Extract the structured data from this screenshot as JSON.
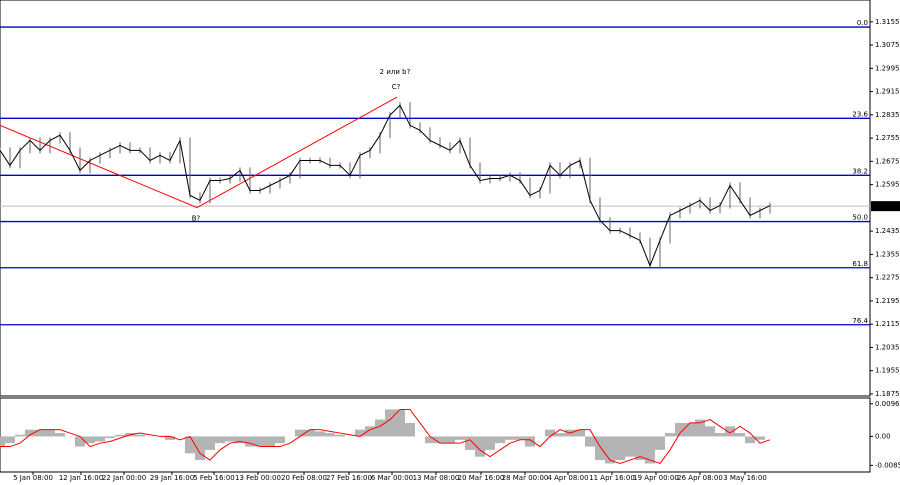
{
  "chart_data": [
    {
      "type": "line",
      "color": "#000000",
      "ylim": [
        1.1868,
        1.323
      ],
      "xlim": [
        0,
        87
      ],
      "yticks": [
        1.3155,
        1.3075,
        1.2995,
        1.2915,
        1.2835,
        1.2755,
        1.2675,
        1.2595,
        1.2435,
        1.2355,
        1.2275,
        1.2195,
        1.2115,
        1.2035,
        1.1955,
        1.1875
      ],
      "current_price": 1.2521,
      "values": [
        1.2713,
        1.2661,
        1.2713,
        1.2747,
        1.2713,
        1.2747,
        1.2765,
        1.2713,
        1.2644,
        1.2678,
        1.2696,
        1.2713,
        1.273,
        1.2713,
        1.2713,
        1.2678,
        1.2696,
        1.2678,
        1.2747,
        1.2558,
        1.2541,
        1.2609,
        1.2609,
        1.2616,
        1.2644,
        1.2575,
        1.2575,
        1.2592,
        1.2609,
        1.2627,
        1.2678,
        1.2678,
        1.2678,
        1.2661,
        1.2661,
        1.2627,
        1.2696,
        1.2713,
        1.2765,
        1.2834,
        1.2868,
        1.2799,
        1.2782,
        1.2747,
        1.273,
        1.2713,
        1.2747,
        1.2661,
        1.2609,
        1.2616,
        1.2616,
        1.2627,
        1.2609,
        1.2558,
        1.2575,
        1.2661,
        1.2627,
        1.2661,
        1.2678,
        1.2541,
        1.2472,
        1.2437,
        1.2437,
        1.242,
        1.2403,
        1.2316,
        1.2403,
        1.2489,
        1.2506,
        1.2523,
        1.2541,
        1.2506,
        1.2523,
        1.2592,
        1.2541,
        1.2489,
        1.2506,
        1.2523
      ],
      "fib_color": "#0000cc",
      "fib_levels": [
        {
          "label": "0.0",
          "value": 1.3137
        },
        {
          "label": "23.6",
          "value": 1.2823
        },
        {
          "label": "38.2",
          "value": 1.2627
        },
        {
          "label": "50.0",
          "value": 1.2468
        },
        {
          "label": "61.8",
          "value": 1.2309
        },
        {
          "label": "76.4",
          "value": 1.2113
        }
      ],
      "wave_line": {
        "color": "#ff0000",
        "x": [
          0,
          19.7,
          39.7
        ],
        "values": [
          1.2799,
          1.2516,
          1.2896
        ]
      },
      "annotations": [
        {
          "text": "B?",
          "color": "#ff0000",
          "x": 19.6,
          "y": 1.2478
        },
        {
          "text": "C?",
          "color": "#ff0000",
          "x": 39.6,
          "y": 1.293
        },
        {
          "text": "2 или b?",
          "color": "#0000cc",
          "x": 39.5,
          "y": 1.2982
        }
      ]
    },
    {
      "type": "bar",
      "color": "#b4b4b4",
      "signal_color": "#ff0000",
      "ylim": [
        -0.01054,
        0.01139
      ],
      "xlim": [
        0,
        87
      ],
      "yticks": [
        0.00968,
        {
          "value": 0,
          "label": "0.00"
        },
        -0.00857
      ],
      "xticks": [
        {
          "value": 3.3,
          "label": "5 Jan 08:00"
        },
        {
          "value": 8.1,
          "label": "12 Jan 16:00"
        },
        {
          "value": 12.4,
          "label": "22 Jan 00:00"
        },
        {
          "value": 17.2,
          "label": "29 Jan 16:00"
        },
        {
          "value": 21.4,
          "label": "5 Feb 16:00"
        },
        {
          "value": 25.8,
          "label": "13 Feb 00:00"
        },
        {
          "value": 30.4,
          "label": "20 Feb 08:00"
        },
        {
          "value": 34.9,
          "label": "27 Feb 16:00"
        },
        {
          "value": 39.2,
          "label": "6 Mar 00:00"
        },
        {
          "value": 43.6,
          "label": "13 Mar 08:00"
        },
        {
          "value": 48.1,
          "label": "20 Mar 16:00"
        },
        {
          "value": 52.5,
          "label": "28 Mar 00:00"
        },
        {
          "value": 56.8,
          "label": "4 Apr 08:00"
        },
        {
          "value": 61.2,
          "label": "11 Apr 16:00"
        },
        {
          "value": 65.6,
          "label": "19 Apr 00:00"
        },
        {
          "value": 70.0,
          "label": "26 Apr 08:00"
        },
        {
          "value": 74.5,
          "label": "3 May 16:00"
        }
      ],
      "values": [
        -0.003,
        -0.002,
        0.0005,
        0.002,
        0.002,
        0.002,
        0.001,
        0,
        -0.003,
        -0.002,
        -0.0015,
        -0.0005,
        0.0005,
        0.001,
        0.0005,
        0,
        0,
        -0.001,
        0,
        -0.005,
        -0.007,
        -0.004,
        -0.002,
        -0.0015,
        -0.002,
        -0.003,
        -0.003,
        -0.003,
        -0.002,
        0,
        0.002,
        0.002,
        0.0015,
        0.001,
        0.0005,
        0,
        0.002,
        0.003,
        0.005,
        0.008,
        0.008,
        0.004,
        0,
        -0.002,
        -0.002,
        -0.002,
        -0.001,
        -0.004,
        -0.006,
        -0.004,
        -0.002,
        -0.001,
        -0.001,
        -0.003,
        0,
        0.002,
        0.001,
        0.002,
        0.002,
        -0.003,
        -0.007,
        -0.008,
        -0.007,
        -0.006,
        -0.007,
        -0.008,
        -0.004,
        0.001,
        0.004,
        0.004,
        0.005,
        0.003,
        0.001,
        0.003,
        0.001,
        -0.002,
        -0.001,
        0
      ],
      "signal": [
        -0.003,
        -0.003,
        -0.002,
        0.0005,
        0.002,
        0.002,
        0.002,
        0.001,
        0,
        -0.003,
        -0.002,
        -0.0015,
        -0.0005,
        0.0005,
        0.001,
        0.0005,
        0,
        0,
        -0.001,
        0,
        -0.005,
        -0.007,
        -0.004,
        -0.002,
        -0.0015,
        -0.002,
        -0.003,
        -0.003,
        -0.003,
        -0.002,
        0,
        0.002,
        0.002,
        0.0015,
        0.001,
        0.0005,
        0,
        0.002,
        0.003,
        0.005,
        0.008,
        0.008,
        0.004,
        0,
        -0.002,
        -0.002,
        -0.002,
        -0.001,
        -0.004,
        -0.006,
        -0.004,
        -0.002,
        -0.001,
        -0.001,
        -0.003,
        0,
        0.002,
        0.001,
        0.002,
        0.002,
        -0.003,
        -0.007,
        -0.008,
        -0.007,
        -0.006,
        -0.007,
        -0.008,
        -0.004,
        0.001,
        0.004,
        0.004,
        0.005,
        0.003,
        0.001,
        0.003,
        0.001,
        -0.002,
        -0.001
      ]
    }
  ]
}
